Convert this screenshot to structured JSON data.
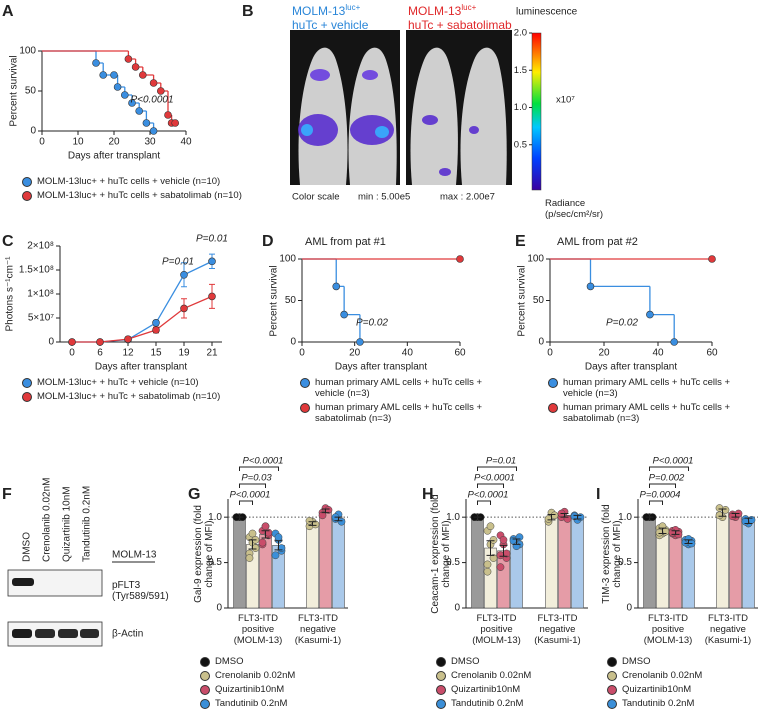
{
  "chart_data": [
    {
      "panel": "A",
      "type": "km",
      "xlabel": "Days after transplant",
      "ylabel": "Percent survival",
      "xlim": [
        0,
        40
      ],
      "xticks": [
        0,
        10,
        20,
        30,
        40
      ],
      "ylim": [
        0,
        100
      ],
      "yticks": [
        0,
        50,
        100
      ],
      "annotations": [
        "P<0.0001"
      ],
      "series": [
        {
          "name": "MOLM-13luc+ + huTc cells + vehicle (n=10)",
          "color": "#3a8ee0",
          "x": [
            0,
            15,
            17,
            20,
            21,
            23,
            25,
            27,
            29,
            31
          ],
          "values": [
            100,
            85,
            70,
            70,
            55,
            45,
            35,
            25,
            10,
            0
          ]
        },
        {
          "name": "MOLM-13luc+ + huTc cells + sabatolimab (n=10)",
          "color": "#e0393b",
          "x": [
            0,
            24,
            26,
            28,
            31,
            33,
            35,
            36,
            37
          ],
          "values": [
            100,
            90,
            80,
            70,
            60,
            50,
            20,
            10,
            10
          ]
        }
      ]
    },
    {
      "panel": "C",
      "type": "line",
      "xlabel": "Days after transplant",
      "ylabel": "Photons s⁻¹cm⁻¹",
      "categories": [
        "0",
        "6",
        "12",
        "15",
        "19",
        "21"
      ],
      "ylim": [
        0,
        200000000
      ],
      "yticks": [
        0,
        {
          "value": 50000000,
          "label": "5×10⁷"
        },
        {
          "value": 100000000,
          "label": "1×10⁸"
        },
        {
          "value": 150000000,
          "label": "1.5×10⁸"
        },
        {
          "value": 200000000,
          "label": "2×10⁸"
        }
      ],
      "annotations": [
        "P=0.01",
        "P=0.01"
      ],
      "series": [
        {
          "name": "MOLM-13luc+ + huTc + vehicle (n=10)",
          "color": "#3a8ee0",
          "values": [
            0,
            0,
            5000000,
            40000000,
            140000000,
            168000000
          ],
          "errors": [
            0,
            0,
            2000000,
            5000000,
            25000000,
            15000000
          ]
        },
        {
          "name": "MOLM-13luc+ + huTc + sabatolimab (n=10)",
          "color": "#e0393b",
          "values": [
            0,
            0,
            6000000,
            25000000,
            70000000,
            95000000
          ],
          "errors": [
            0,
            0,
            2000000,
            6000000,
            20000000,
            25000000
          ]
        }
      ]
    },
    {
      "panel": "D",
      "type": "km",
      "title": "AML from pat #1",
      "xlabel": "Days after transplant",
      "ylabel": "Percent survival",
      "xlim": [
        0,
        60
      ],
      "xticks": [
        0,
        20,
        40,
        60
      ],
      "ylim": [
        0,
        100
      ],
      "yticks": [
        0,
        50,
        100
      ],
      "annotations": [
        "P=0.02"
      ],
      "series": [
        {
          "name": "human primary AML cells + huTc cells + vehicle (n=3)",
          "color": "#3a8ee0",
          "x": [
            0,
            13,
            16,
            22
          ],
          "values": [
            100,
            67,
            33,
            0
          ]
        },
        {
          "name": "human primary AML cells + huTc cells + sabatolimab (n=3)",
          "color": "#e0393b",
          "x": [
            0,
            60
          ],
          "values": [
            100,
            100
          ]
        }
      ]
    },
    {
      "panel": "E",
      "type": "km",
      "title": "AML from pat #2",
      "xlabel": "Days after transplant",
      "ylabel": "Percent survival",
      "xlim": [
        0,
        60
      ],
      "xticks": [
        0,
        20,
        40,
        60
      ],
      "ylim": [
        0,
        100
      ],
      "yticks": [
        0,
        50,
        100
      ],
      "annotations": [
        "P=0.02"
      ],
      "series": [
        {
          "name": "human primary AML cells + huTc cells + vehicle (n=3)",
          "color": "#3a8ee0",
          "x": [
            0,
            15,
            37,
            46
          ],
          "values": [
            100,
            67,
            33,
            0
          ]
        },
        {
          "name": "human primary AML cells + huTc cells + sabatolimab (n=3)",
          "color": "#e0393b",
          "x": [
            0,
            60
          ],
          "values": [
            100,
            100
          ]
        }
      ]
    },
    {
      "panel": "G",
      "type": "barscatter",
      "ylabel": "Gal-9 expression (fold change of MFI)",
      "categories": [
        "FLT3-ITD positive (MOLM-13)",
        "FLT3-ITD negative (Kasumi-1)"
      ],
      "ylim": [
        0,
        1.2
      ],
      "yticks": [
        0,
        0.5,
        {
          "value": 1,
          "label": "1.0"
        }
      ],
      "reference_line": 1,
      "annotations": [
        "P<0.0001",
        "P=0.03",
        "P<0.0001"
      ],
      "series": [
        {
          "name": "DMSO",
          "color": "#111111",
          "bar_color": "#9a9a9a",
          "values": [
            1,
            null
          ],
          "errors": [
            0,
            null
          ],
          "points": [
            [
              1,
              1,
              1,
              1,
              1,
              1,
              1
            ],
            []
          ]
        },
        {
          "name": "Crenolanib 0.02nM",
          "color": "#c9c08c",
          "bar_color": "#f2eedb",
          "values": [
            0.7,
            0.93
          ],
          "errors": [
            0.05,
            0.02
          ],
          "points": [
            [
              0.78,
              0.72,
              0.66,
              0.6,
              0.82,
              0.75,
              0.55
            ],
            [
              0.9,
              0.95,
              0.92,
              0.96
            ]
          ]
        },
        {
          "name": "Quizartinib10nM",
          "color": "#c94d6a",
          "bar_color": "#e59ca7",
          "values": [
            0.81,
            1.07
          ],
          "errors": [
            0.04,
            0.02
          ],
          "points": [
            [
              0.85,
              0.9,
              0.8,
              0.7,
              0.9,
              0.83,
              0.72
            ],
            [
              1.05,
              1.1,
              1.08,
              1.02
            ]
          ]
        },
        {
          "name": "Tandutinib 0.2nM",
          "color": "#3b8fd8",
          "bar_color": "#aac9ea",
          "values": [
            0.69,
            0.98
          ],
          "errors": [
            0.05,
            0.02
          ],
          "points": [
            [
              0.82,
              0.75,
              0.63,
              0.58,
              0.78,
              0.66
            ],
            [
              0.98,
              1.03,
              0.95,
              1
            ]
          ]
        }
      ]
    },
    {
      "panel": "H",
      "type": "barscatter",
      "ylabel": "Ceacam-1 expression (fold change of MFI)",
      "categories": [
        "FLT3-ITD positive (MOLM-13)",
        "FLT3-ITD negative (Kasumi-1)"
      ],
      "ylim": [
        0,
        1.2
      ],
      "yticks": [
        0,
        0.5,
        {
          "value": 1,
          "label": "1.0"
        }
      ],
      "reference_line": 1,
      "annotations": [
        "P=0.01",
        "P<0.0001",
        "P<0.0001"
      ],
      "series": [
        {
          "name": "DMSO",
          "color": "#111111",
          "bar_color": "#9a9a9a",
          "values": [
            1,
            null
          ],
          "errors": [
            0,
            null
          ],
          "points": [
            [
              1,
              1,
              1,
              1,
              1,
              1,
              1
            ],
            []
          ]
        },
        {
          "name": "Crenolanib 0.02nM",
          "color": "#c9c08c",
          "bar_color": "#f2eedb",
          "values": [
            0.66,
            1
          ],
          "errors": [
            0.08,
            0.03
          ],
          "points": [
            [
              0.85,
              0.7,
              0.55,
              0.4,
              0.9,
              0.75,
              0.48
            ],
            [
              0.95,
              1.05,
              1.02,
              0.98
            ]
          ]
        },
        {
          "name": "Quizartinib10nM",
          "color": "#c94d6a",
          "bar_color": "#e59ca7",
          "values": [
            0.63,
            1.02
          ],
          "errors": [
            0.06,
            0.02
          ],
          "points": [
            [
              0.8,
              0.7,
              0.55,
              0.45,
              0.75,
              0.6,
              0.58
            ],
            [
              1,
              1.06,
              0.98,
              1.04
            ]
          ]
        },
        {
          "name": "Tandutinib 0.2nM",
          "color": "#3b8fd8",
          "bar_color": "#aac9ea",
          "values": [
            0.73,
            1
          ],
          "errors": [
            0.03,
            0.02
          ],
          "points": [
            [
              0.76,
              0.72,
              0.7,
              0.74,
              0.68,
              0.78
            ],
            [
              1.02,
              0.97,
              1,
              1.01
            ]
          ]
        }
      ]
    },
    {
      "panel": "I",
      "type": "barscatter",
      "ylabel": "TIM-3 expression (fold change of MFI)",
      "categories": [
        "FLT3-ITD positive (MOLM-13)",
        "FLT3-ITD negative (Kasumi-1)"
      ],
      "ylim": [
        0,
        1.2
      ],
      "yticks": [
        0,
        0.5,
        {
          "value": 1,
          "label": "1.0"
        }
      ],
      "reference_line": 1,
      "annotations": [
        "P<0.0001",
        "P=0.002",
        "P=0.0004"
      ],
      "series": [
        {
          "name": "DMSO",
          "color": "#111111",
          "bar_color": "#9a9a9a",
          "values": [
            1,
            null
          ],
          "errors": [
            0,
            null
          ],
          "points": [
            [
              1,
              1,
              1,
              1,
              1,
              1,
              1
            ],
            []
          ]
        },
        {
          "name": "Crenolanib 0.02nM",
          "color": "#c9c08c",
          "bar_color": "#f2eedb",
          "values": [
            0.85,
            1.05
          ],
          "errors": [
            0.03,
            0.04
          ],
          "points": [
            [
              0.88,
              0.82,
              0.86,
              0.8,
              0.9,
              0.84,
              0.83
            ],
            [
              1.1,
              1.0,
              1.08,
              1.02
            ]
          ]
        },
        {
          "name": "Quizartinib10nM",
          "color": "#c94d6a",
          "bar_color": "#e59ca7",
          "values": [
            0.83,
            1.02
          ],
          "errors": [
            0.02,
            0.02
          ],
          "points": [
            [
              0.85,
              0.8,
              0.84,
              0.82,
              0.86,
              0.81,
              0.83
            ],
            [
              1.03,
              1.0,
              1.04,
              1.01
            ]
          ]
        },
        {
          "name": "Tandutinib 0.2nM",
          "color": "#3b8fd8",
          "bar_color": "#aac9ea",
          "values": [
            0.73,
            0.96
          ],
          "errors": [
            0.02,
            0.03
          ],
          "points": [
            [
              0.75,
              0.7,
              0.74,
              0.72,
              0.76,
              0.71
            ],
            [
              0.98,
              0.93,
              0.97,
              0.95
            ]
          ]
        }
      ]
    }
  ],
  "panel_b": {
    "panel": "B",
    "vehicle": {
      "cell_line": "MOLM-13",
      "superscript": "luc+",
      "condition": "huTc + vehicle"
    },
    "treated": {
      "cell_line": "MOLM-13",
      "superscript": "luc+",
      "condition": "huTc + sabatolimab"
    },
    "colorbar": {
      "title": "luminescence",
      "lim": [
        0,
        2
      ],
      "ticks": [
        {
          "value": 2,
          "label": "2.0"
        },
        1.5,
        {
          "value": 1,
          "label": "1.0"
        },
        0.5
      ],
      "scale_label": "x10⁷",
      "unit": "Radiance (p/sec/cm²/sr)"
    },
    "footer": {
      "scale": "Color scale",
      "min": "min : 5.00e5",
      "max": "max : 2.00e7"
    }
  },
  "panel_f": {
    "panel": "F",
    "lanes": [
      "DMSO",
      "Crenolanib 0.02nM",
      "Quizartinib 10nM",
      "Tandutinib 0.2nM"
    ],
    "cell_line": "MOLM-13",
    "rows": [
      "pFLT3 (Tyr589/591)",
      "β-Actin"
    ]
  }
}
